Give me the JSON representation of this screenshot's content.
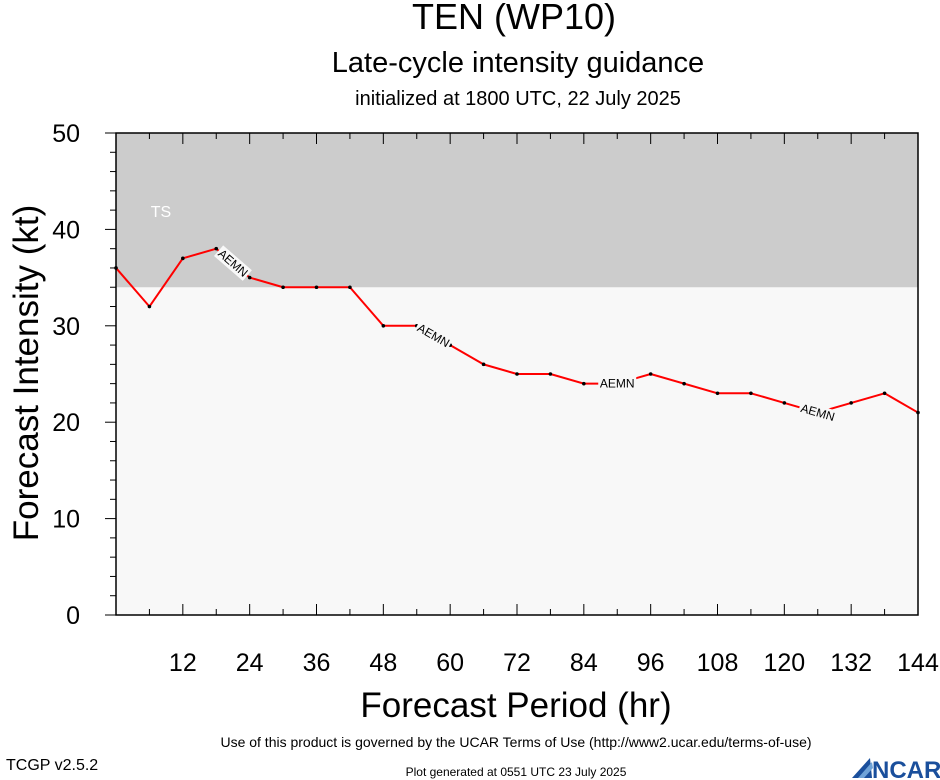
{
  "header": {
    "storm_title": "TEN (WP10)",
    "subtitle": "Late-cycle intensity guidance",
    "initialized": "initialized at 1800 UTC, 22 July 2025"
  },
  "chart_data": {
    "type": "line",
    "xlabel": "Forecast Period (hr)",
    "ylabel": "Forecast Intensity (kt)",
    "xlim": [
      0,
      144
    ],
    "ylim": [
      0,
      50
    ],
    "x_ticks": [
      12,
      24,
      36,
      48,
      60,
      72,
      84,
      96,
      108,
      120,
      132,
      144
    ],
    "y_ticks": [
      0,
      10,
      20,
      30,
      40,
      50
    ],
    "grid": false,
    "bands": [
      {
        "label": "TS",
        "from": 34,
        "to": 50,
        "color": "#cccccc"
      }
    ],
    "plot_background": "#f8f8f8",
    "series": [
      {
        "name": "AEMN",
        "color": "#ff0000",
        "x": [
          0,
          6,
          12,
          18,
          24,
          30,
          36,
          42,
          48,
          54,
          60,
          66,
          72,
          78,
          84,
          90,
          96,
          102,
          108,
          114,
          120,
          126,
          132,
          138,
          144
        ],
        "values": [
          36,
          32,
          37,
          38,
          35,
          34,
          34,
          34,
          30,
          30,
          28,
          26,
          25,
          25,
          24,
          24,
          25,
          24,
          23,
          23,
          22,
          21,
          22,
          23,
          21
        ],
        "label_x": [
          21,
          57,
          90,
          126
        ]
      }
    ]
  },
  "footer": {
    "terms": "Use of this product is governed by the UCAR Terms of Use (http://www2.ucar.edu/terms-of-use)",
    "version": "TCGP v2.5.2",
    "generated": "Plot generated at 0551 UTC   23 July 2025",
    "logo_text": "NCAR"
  }
}
